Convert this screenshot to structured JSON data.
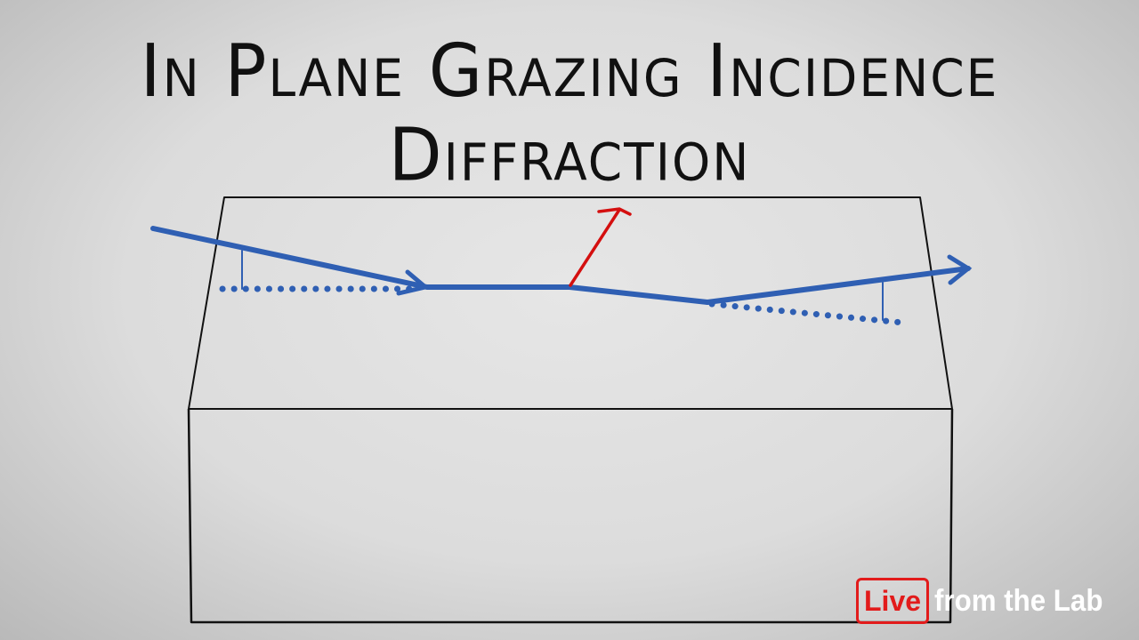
{
  "title": "In Plane Grazing Incidence Diffraction",
  "logo": {
    "live": "Live",
    "rest": "from the Lab"
  },
  "colors": {
    "beam": "#2f5fb3",
    "normal": "#d40f0f",
    "outline": "#111111",
    "logo_red": "#e21b1b"
  }
}
